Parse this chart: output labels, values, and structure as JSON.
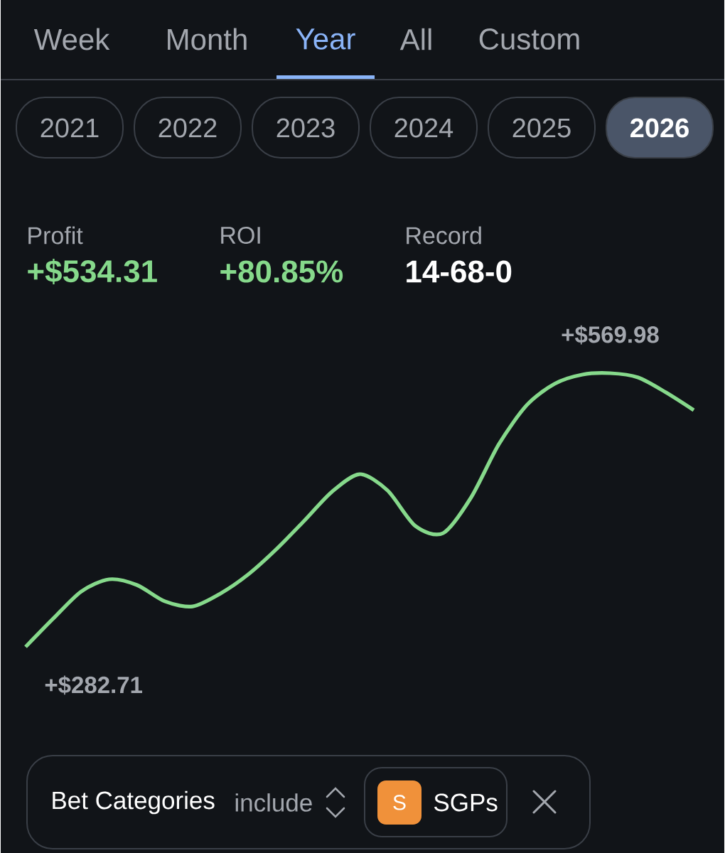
{
  "chart_data": {
    "type": "line",
    "color": "#86d98b",
    "line_style": "solid",
    "marker": "none",
    "categories": [
      null,
      null,
      null,
      null,
      null,
      null,
      null,
      null,
      null,
      null,
      null,
      null,
      null,
      null,
      null,
      null,
      null,
      null,
      null,
      null,
      null,
      null,
      null,
      null,
      null
    ],
    "values": [
      282.71,
      312.6,
      340.9,
      353.6,
      347.6,
      330.5,
      325.2,
      338.7,
      358.8,
      385.0,
      414.8,
      445.4,
      464.0,
      446.9,
      409.6,
      402.1,
      439.4,
      495.4,
      536.4,
      558.8,
      568.5,
      569.98,
      565.5,
      549.8,
      531.2
    ],
    "value_labels": [
      "+$282.71",
      null,
      null,
      null,
      null,
      null,
      null,
      null,
      null,
      null,
      null,
      null,
      null,
      null,
      null,
      null,
      null,
      null,
      null,
      null,
      null,
      "+$569.98",
      null,
      null,
      null
    ],
    "annotations": [
      "Week",
      "Month",
      "Year",
      "All",
      "Custom",
      "2021",
      "2022",
      "2023",
      "2024",
      "2025",
      "2026",
      "Profit",
      "+$534.31",
      "ROI",
      "+80.85%",
      "Record",
      "14-68-0",
      "Bet Categories",
      "include",
      "S",
      "SGPs"
    ]
  }
}
